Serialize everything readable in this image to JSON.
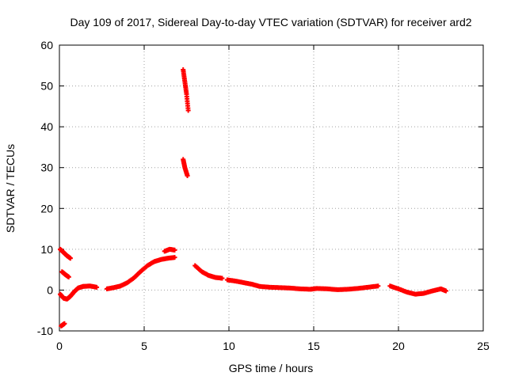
{
  "chart_data": {
    "type": "scatter",
    "title": "Day 109 of 2017, Sidereal Day-to-day VTEC variation (SDTVAR) for receiver ard2",
    "xlabel": "GPS time / hours",
    "ylabel": "SDTVAR / TECUs",
    "xlim": [
      0,
      25
    ],
    "ylim": [
      -10,
      60
    ],
    "xticks": [
      0,
      5,
      10,
      15,
      20,
      25
    ],
    "yticks": [
      -10,
      0,
      10,
      20,
      30,
      40,
      50,
      60
    ],
    "grid": true,
    "marker": "plus",
    "color": "#ff0000",
    "segments": [
      {
        "name": "arc-1",
        "points": [
          [
            0.05,
            10
          ],
          [
            0.25,
            9.2
          ],
          [
            0.45,
            8.4
          ],
          [
            0.65,
            7.8
          ]
        ]
      },
      {
        "name": "arc-2",
        "points": [
          [
            0.15,
            4.5
          ],
          [
            0.35,
            3.8
          ],
          [
            0.55,
            3.2
          ]
        ]
      },
      {
        "name": "arc-3",
        "points": [
          [
            0.05,
            -1
          ],
          [
            0.25,
            -2
          ],
          [
            0.45,
            -2.2
          ],
          [
            0.65,
            -1.5
          ],
          [
            0.85,
            -0.5
          ],
          [
            1.1,
            0.5
          ],
          [
            1.4,
            0.9
          ],
          [
            1.8,
            1
          ],
          [
            2.2,
            0.7
          ]
        ]
      },
      {
        "name": "arc-4",
        "points": [
          [
            0.1,
            -8.8
          ],
          [
            0.3,
            -8.2
          ]
        ]
      },
      {
        "name": "arc-5",
        "points": [
          [
            2.8,
            0.3
          ],
          [
            3.2,
            0.6
          ],
          [
            3.6,
            1
          ],
          [
            4.0,
            1.8
          ],
          [
            4.4,
            3
          ],
          [
            4.8,
            4.6
          ],
          [
            5.2,
            6
          ],
          [
            5.6,
            7
          ],
          [
            6.0,
            7.5
          ],
          [
            6.4,
            7.8
          ],
          [
            6.8,
            8
          ]
        ]
      },
      {
        "name": "arc-6",
        "points": [
          [
            6.2,
            9.5
          ],
          [
            6.5,
            10
          ],
          [
            6.8,
            9.8
          ]
        ]
      },
      {
        "name": "arc-7",
        "points": [
          [
            7.3,
            54
          ],
          [
            7.4,
            51
          ],
          [
            7.5,
            48
          ],
          [
            7.6,
            44
          ]
        ]
      },
      {
        "name": "arc-8",
        "points": [
          [
            7.3,
            32
          ],
          [
            7.4,
            30
          ],
          [
            7.55,
            28
          ]
        ]
      },
      {
        "name": "arc-9",
        "points": [
          [
            8.0,
            6
          ],
          [
            8.4,
            4.5
          ],
          [
            8.8,
            3.6
          ],
          [
            9.2,
            3.1
          ],
          [
            9.6,
            2.9
          ]
        ]
      },
      {
        "name": "arc-10",
        "points": [
          [
            9.9,
            2.5
          ],
          [
            10.4,
            2.2
          ],
          [
            10.9,
            1.8
          ],
          [
            11.4,
            1.4
          ],
          [
            11.8,
            0.9
          ],
          [
            12.4,
            0.7
          ],
          [
            13.0,
            0.6
          ],
          [
            13.6,
            0.5
          ],
          [
            14.2,
            0.3
          ],
          [
            14.8,
            0.2
          ],
          [
            15.2,
            0.4
          ],
          [
            15.8,
            0.3
          ],
          [
            16.4,
            0.1
          ],
          [
            17.0,
            0.2
          ],
          [
            17.6,
            0.4
          ],
          [
            18.2,
            0.7
          ],
          [
            18.8,
            1
          ]
        ]
      },
      {
        "name": "arc-11",
        "points": [
          [
            19.5,
            1
          ],
          [
            20.0,
            0.3
          ],
          [
            20.5,
            -0.5
          ],
          [
            21.0,
            -1
          ],
          [
            21.5,
            -0.8
          ],
          [
            22.0,
            -0.2
          ],
          [
            22.5,
            0.3
          ],
          [
            22.8,
            -0.2
          ]
        ]
      }
    ]
  }
}
